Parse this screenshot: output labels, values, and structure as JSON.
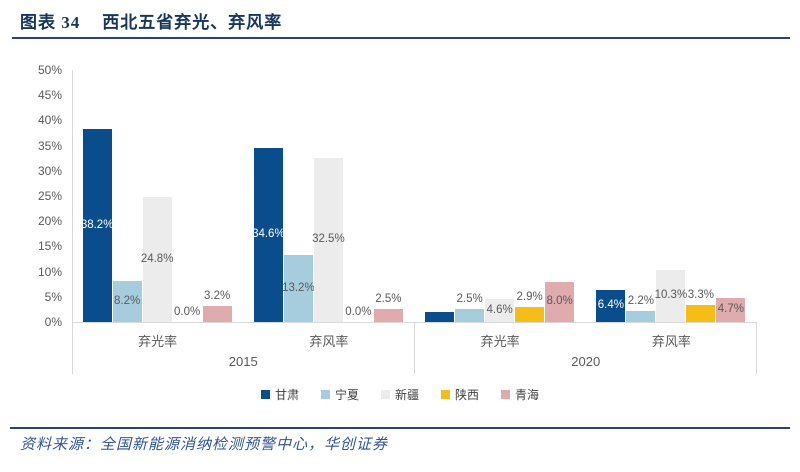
{
  "figure": {
    "label": "图表 34",
    "title": "西北五省弃光、弃风率"
  },
  "source": "资料来源：全国新能源消纳检测预警中心，华创证券",
  "colors": {
    "title_text": "#17365d",
    "rule": "#2e4077",
    "source_text": "#2f5597",
    "axis_text": "#595959",
    "axis_line": "#d9d9d9",
    "inside_label_on_dark": "#ffffff"
  },
  "chart_data": {
    "type": "bar",
    "title": "西北五省弃光、弃风率",
    "y_axis": {
      "min": 0,
      "max": 50,
      "step": 5,
      "tick_suffix": "%",
      "tick_labels": [
        "0%",
        "5%",
        "10%",
        "15%",
        "20%",
        "25%",
        "30%",
        "35%",
        "40%",
        "45%",
        "50%"
      ]
    },
    "gridlines": false,
    "legend_position": "bottom",
    "sections": [
      {
        "label": "2015",
        "categories": [
          "弃光率",
          "弃风率"
        ]
      },
      {
        "label": "2020",
        "categories": [
          "弃光率",
          "弃风率"
        ]
      }
    ],
    "group_order": [
      "2015 弃光率",
      "2015 弃风率",
      "2020 弃光率",
      "2020 弃风率"
    ],
    "series": [
      {
        "name": "甘肃",
        "color": "#0a4d8c",
        "values": [
          38.2,
          34.6,
          2.0,
          6.4
        ],
        "labels": [
          "38.2%",
          "34.6%",
          null,
          "6.4%"
        ]
      },
      {
        "name": "宁夏",
        "color": "#a6cdde",
        "values": [
          8.2,
          13.2,
          2.5,
          2.2
        ],
        "labels": [
          "8.2%",
          "13.2%",
          "2.5%",
          "2.2%"
        ]
      },
      {
        "name": "新疆",
        "color": "#ececec",
        "values": [
          24.8,
          32.5,
          4.6,
          10.3
        ],
        "labels": [
          "24.8%",
          "32.5%",
          "4.6%",
          "10.3%"
        ]
      },
      {
        "name": "陕西",
        "color": "#f6bd16",
        "values": [
          0.0,
          0.0,
          2.9,
          3.3
        ],
        "labels": [
          "0.0%",
          "0.0%",
          "2.9%",
          "3.3%"
        ]
      },
      {
        "name": "青海",
        "color": "#dfabad",
        "values": [
          3.2,
          2.5,
          8.0,
          4.7
        ],
        "labels": [
          "3.2%",
          "2.5%",
          "8.0%",
          "4.7%"
        ]
      }
    ]
  }
}
